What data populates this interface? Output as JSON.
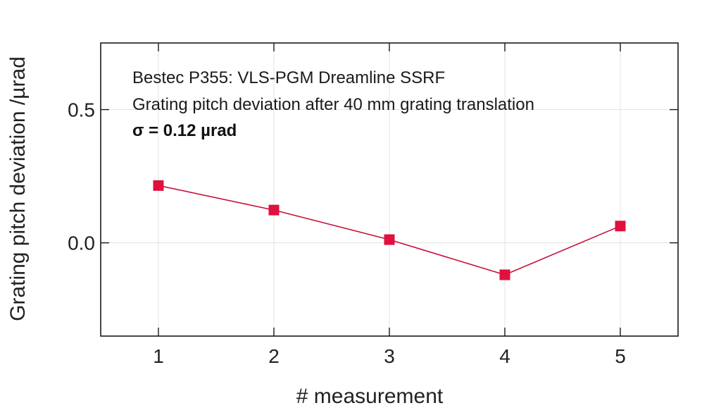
{
  "chart_data": {
    "type": "line",
    "title": "",
    "xlabel": "# measurement",
    "ylabel": "Grating pitch deviation /µrad",
    "x": [
      1,
      2,
      3,
      4,
      5
    ],
    "xlim": [
      0.5,
      5.5
    ],
    "ylim": [
      -0.35,
      0.75
    ],
    "x_ticks": [
      1,
      2,
      3,
      4,
      5
    ],
    "x_tick_labels": [
      "1",
      "2",
      "3",
      "4",
      "5"
    ],
    "y_ticks": [
      0.0,
      0.5
    ],
    "y_tick_labels": [
      "0.0",
      "0.5"
    ],
    "grid": true,
    "series": [
      {
        "values": [
          0.215,
          0.123,
          0.012,
          -0.12,
          0.063
        ],
        "color": "#c8103a",
        "marker_color": "#e0103f",
        "marker": "square"
      }
    ],
    "annotations": [
      "Bestec P355: VLS-PGM Dreamline SSRF",
      "Grating pitch deviation after 40 mm grating translation",
      "σ  = 0.12 µrad"
    ]
  }
}
